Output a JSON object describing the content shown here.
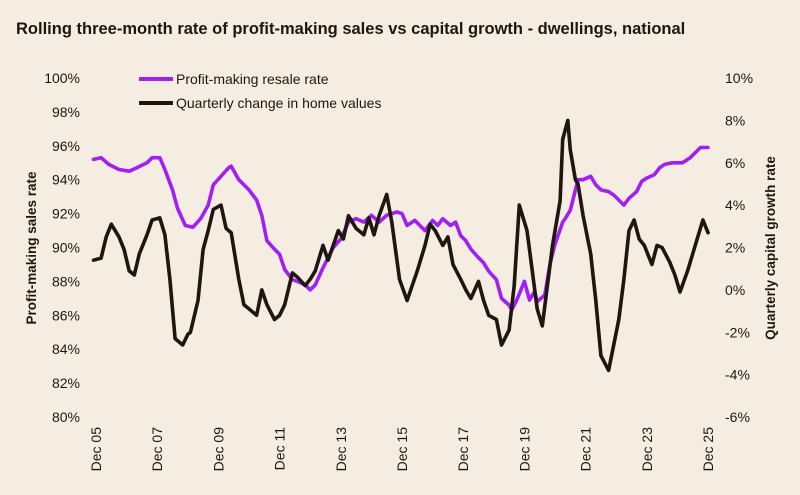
{
  "chart_data": {
    "type": "line",
    "title": "Rolling three-month rate of profit-making sales vs capital growth - dwellings, national",
    "ylabel_left": "Profit-making sales rate",
    "ylabel_right": "Quarterly capital growth rate",
    "ylim_left": [
      80,
      100
    ],
    "ylim_right": [
      -6,
      10
    ],
    "yticks_left": [
      "80%",
      "82%",
      "84%",
      "86%",
      "88%",
      "90%",
      "92%",
      "94%",
      "96%",
      "98%",
      "100%"
    ],
    "yticks_right": [
      "-6%",
      "-4%",
      "-2%",
      "0%",
      "2%",
      "4%",
      "6%",
      "8%",
      "10%"
    ],
    "xticks": [
      "Dec 05",
      "Dec 07",
      "Dec 09",
      "Dec 11",
      "Dec 13",
      "Dec 15",
      "Dec 17",
      "Dec 19",
      "Dec 21",
      "Dec 23",
      "Dec 25"
    ],
    "grid": false,
    "legend_position": "top-left",
    "series": [
      {
        "name": "Profit-making resale rate",
        "axis": "left",
        "color": "#a21ff2",
        "points": [
          [
            "2005-11",
            95.2
          ],
          [
            "2006-02",
            95.3
          ],
          [
            "2006-05",
            94.9
          ],
          [
            "2006-09",
            94.6
          ],
          [
            "2007-01",
            94.5
          ],
          [
            "2007-04",
            94.7
          ],
          [
            "2007-08",
            95.0
          ],
          [
            "2007-10",
            95.3
          ],
          [
            "2008-01",
            95.3
          ],
          [
            "2008-03",
            94.6
          ],
          [
            "2008-06",
            93.4
          ],
          [
            "2008-08",
            92.3
          ],
          [
            "2008-11",
            91.3
          ],
          [
            "2009-02",
            91.2
          ],
          [
            "2009-05",
            91.7
          ],
          [
            "2009-08",
            92.5
          ],
          [
            "2009-10",
            93.7
          ],
          [
            "2010-01",
            94.2
          ],
          [
            "2010-04",
            94.7
          ],
          [
            "2010-05",
            94.8
          ],
          [
            "2010-08",
            94.0
          ],
          [
            "2010-12",
            93.4
          ],
          [
            "2011-03",
            92.8
          ],
          [
            "2011-05",
            91.9
          ],
          [
            "2011-07",
            90.4
          ],
          [
            "2011-10",
            89.9
          ],
          [
            "2011-12",
            89.6
          ],
          [
            "2012-02",
            88.7
          ],
          [
            "2012-05",
            88.1
          ],
          [
            "2012-07",
            88.0
          ],
          [
            "2012-10",
            87.8
          ],
          [
            "2012-12",
            87.5
          ],
          [
            "2013-02",
            87.8
          ],
          [
            "2013-05",
            88.8
          ],
          [
            "2013-07",
            89.4
          ],
          [
            "2013-09",
            90.0
          ],
          [
            "2013-12",
            90.5
          ],
          [
            "2014-03",
            91.5
          ],
          [
            "2014-06",
            91.7
          ],
          [
            "2014-09",
            91.5
          ],
          [
            "2014-12",
            91.9
          ],
          [
            "2015-03",
            91.5
          ],
          [
            "2015-06",
            91.9
          ],
          [
            "2015-10",
            92.1
          ],
          [
            "2015-12",
            92.0
          ],
          [
            "2016-02",
            91.3
          ],
          [
            "2016-05",
            91.6
          ],
          [
            "2016-07",
            91.3
          ],
          [
            "2016-09",
            91.0
          ],
          [
            "2016-12",
            91.6
          ],
          [
            "2017-02",
            91.3
          ],
          [
            "2017-04",
            91.7
          ],
          [
            "2017-07",
            91.3
          ],
          [
            "2017-09",
            91.5
          ],
          [
            "2017-11",
            90.7
          ],
          [
            "2018-01",
            90.4
          ],
          [
            "2018-03",
            89.9
          ],
          [
            "2018-06",
            89.4
          ],
          [
            "2018-08",
            89.1
          ],
          [
            "2018-10",
            88.6
          ],
          [
            "2019-01",
            88.1
          ],
          [
            "2019-03",
            87.0
          ],
          [
            "2019-06",
            86.6
          ],
          [
            "2019-07",
            86.3
          ],
          [
            "2019-09",
            86.9
          ],
          [
            "2019-12",
            88.0
          ],
          [
            "2020-02",
            86.9
          ],
          [
            "2020-04",
            87.4
          ],
          [
            "2020-05",
            86.8
          ],
          [
            "2020-08",
            87.2
          ],
          [
            "2020-10",
            89.0
          ],
          [
            "2020-12",
            90.2
          ],
          [
            "2021-03",
            91.5
          ],
          [
            "2021-04",
            91.7
          ],
          [
            "2021-06",
            92.2
          ],
          [
            "2021-07",
            92.8
          ],
          [
            "2021-09",
            94.0
          ],
          [
            "2021-11",
            94.0
          ],
          [
            "2022-02",
            94.2
          ],
          [
            "2022-04",
            93.7
          ],
          [
            "2022-06",
            93.4
          ],
          [
            "2022-09",
            93.3
          ],
          [
            "2022-11",
            93.1
          ],
          [
            "2023-01",
            92.8
          ],
          [
            "2023-03",
            92.5
          ],
          [
            "2023-05",
            92.9
          ],
          [
            "2023-08",
            93.3
          ],
          [
            "2023-10",
            93.9
          ],
          [
            "2023-12",
            94.1
          ],
          [
            "2024-03",
            94.3
          ],
          [
            "2024-05",
            94.7
          ],
          [
            "2024-07",
            94.9
          ],
          [
            "2024-10",
            95.0
          ],
          [
            "2024-12",
            95.0
          ],
          [
            "2025-02",
            95.0
          ],
          [
            "2025-05",
            95.3
          ],
          [
            "2025-07",
            95.6
          ],
          [
            "2025-09",
            95.9
          ],
          [
            "2025-12",
            95.9
          ]
        ]
      },
      {
        "name": "Quarterly change in home values",
        "axis": "right",
        "color": "#1e1710",
        "points": [
          [
            "2005-11",
            1.4
          ],
          [
            "2006-02",
            1.5
          ],
          [
            "2006-04",
            2.5
          ],
          [
            "2006-06",
            3.1
          ],
          [
            "2006-09",
            2.5
          ],
          [
            "2006-11",
            1.9
          ],
          [
            "2007-01",
            0.9
          ],
          [
            "2007-03",
            0.7
          ],
          [
            "2007-05",
            1.7
          ],
          [
            "2007-08",
            2.6
          ],
          [
            "2007-10",
            3.3
          ],
          [
            "2008-01",
            3.4
          ],
          [
            "2008-03",
            2.6
          ],
          [
            "2008-05",
            0.5
          ],
          [
            "2008-07",
            -2.3
          ],
          [
            "2008-10",
            -2.6
          ],
          [
            "2008-12",
            -2.1
          ],
          [
            "2009-01",
            -2.0
          ],
          [
            "2009-04",
            -0.5
          ],
          [
            "2009-06",
            1.9
          ],
          [
            "2009-08",
            2.8
          ],
          [
            "2009-10",
            3.8
          ],
          [
            "2010-01",
            4.0
          ],
          [
            "2010-03",
            2.9
          ],
          [
            "2010-05",
            2.7
          ],
          [
            "2010-08",
            0.5
          ],
          [
            "2010-10",
            -0.7
          ],
          [
            "2010-12",
            -0.9
          ],
          [
            "2011-03",
            -1.2
          ],
          [
            "2011-05",
            0.0
          ],
          [
            "2011-07",
            -0.7
          ],
          [
            "2011-10",
            -1.4
          ],
          [
            "2011-12",
            -1.2
          ],
          [
            "2012-02",
            -0.7
          ],
          [
            "2012-05",
            0.8
          ],
          [
            "2012-07",
            0.6
          ],
          [
            "2012-10",
            0.2
          ],
          [
            "2012-12",
            0.5
          ],
          [
            "2013-02",
            0.9
          ],
          [
            "2013-05",
            2.1
          ],
          [
            "2013-07",
            1.4
          ],
          [
            "2013-11",
            2.8
          ],
          [
            "2014-01",
            2.4
          ],
          [
            "2014-03",
            3.5
          ],
          [
            "2014-06",
            2.9
          ],
          [
            "2014-09",
            2.6
          ],
          [
            "2014-11",
            3.4
          ],
          [
            "2015-01",
            2.6
          ],
          [
            "2015-03",
            3.5
          ],
          [
            "2015-06",
            4.5
          ],
          [
            "2015-08",
            3.2
          ],
          [
            "2015-11",
            0.5
          ],
          [
            "2016-02",
            -0.5
          ],
          [
            "2016-04",
            0.2
          ],
          [
            "2016-06",
            0.9
          ],
          [
            "2016-09",
            2.1
          ],
          [
            "2016-11",
            3.1
          ],
          [
            "2017-01",
            2.8
          ],
          [
            "2017-04",
            2.1
          ],
          [
            "2017-06",
            2.5
          ],
          [
            "2017-08",
            1.2
          ],
          [
            "2017-11",
            0.5
          ],
          [
            "2018-01",
            0.0
          ],
          [
            "2018-03",
            -0.4
          ],
          [
            "2018-06",
            0.4
          ],
          [
            "2018-08",
            -0.5
          ],
          [
            "2018-10",
            -1.2
          ],
          [
            "2019-01",
            -1.4
          ],
          [
            "2019-03",
            -2.6
          ],
          [
            "2019-06",
            -1.9
          ],
          [
            "2019-08",
            0.2
          ],
          [
            "2019-10",
            4.0
          ],
          [
            "2020-01",
            2.8
          ],
          [
            "2020-02",
            1.9
          ],
          [
            "2020-05",
            -0.9
          ],
          [
            "2020-07",
            -1.7
          ],
          [
            "2020-09",
            0.2
          ],
          [
            "2020-11",
            2.1
          ],
          [
            "2021-02",
            4.2
          ],
          [
            "2021-03",
            7.1
          ],
          [
            "2021-05",
            8.0
          ],
          [
            "2021-06",
            6.6
          ],
          [
            "2021-08",
            5.2
          ],
          [
            "2021-09",
            5.0
          ],
          [
            "2021-11",
            3.5
          ],
          [
            "2022-02",
            1.7
          ],
          [
            "2022-04",
            -0.5
          ],
          [
            "2022-06",
            -3.1
          ],
          [
            "2022-09",
            -3.8
          ],
          [
            "2022-11",
            -2.6
          ],
          [
            "2023-01",
            -1.4
          ],
          [
            "2023-03",
            0.5
          ],
          [
            "2023-05",
            2.8
          ],
          [
            "2023-07",
            3.3
          ],
          [
            "2023-09",
            2.4
          ],
          [
            "2023-11",
            2.1
          ],
          [
            "2024-02",
            1.2
          ],
          [
            "2024-04",
            2.1
          ],
          [
            "2024-06",
            2.0
          ],
          [
            "2024-09",
            1.3
          ],
          [
            "2024-11",
            0.7
          ],
          [
            "2025-01",
            -0.1
          ],
          [
            "2025-04",
            0.9
          ],
          [
            "2025-06",
            1.7
          ],
          [
            "2025-08",
            2.5
          ],
          [
            "2025-10",
            3.3
          ],
          [
            "2025-12",
            2.7
          ]
        ]
      }
    ]
  }
}
